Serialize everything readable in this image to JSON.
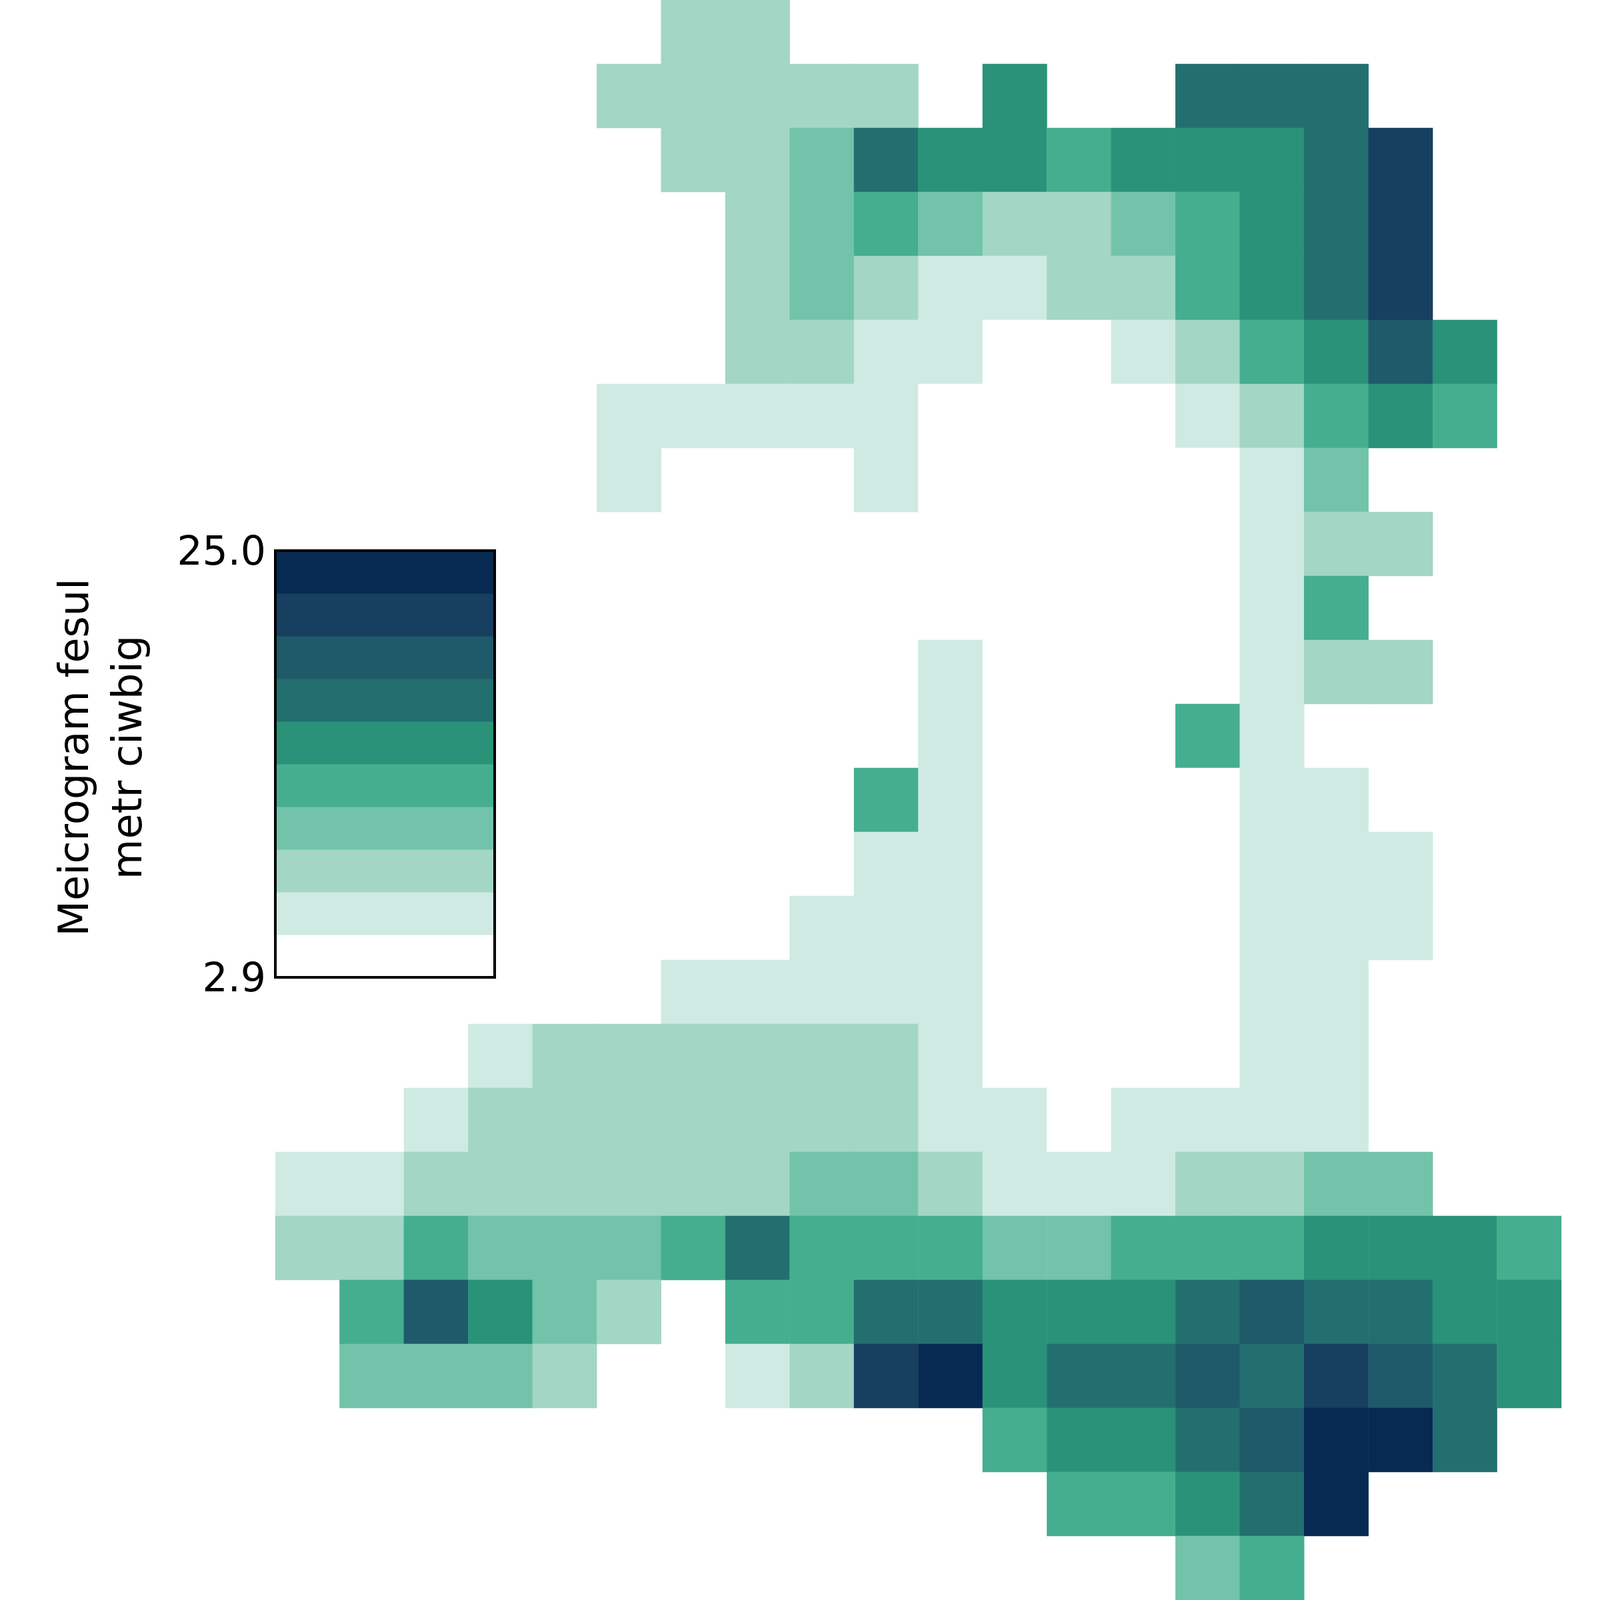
{
  "chart_data": {
    "type": "heatmap",
    "colorbar_label": "Meicrogram fesul\nmetr ciwbig",
    "colorbar_range": [
      2.9,
      25.0
    ],
    "colorbar_ticks": [
      2.9,
      {
        "value": 25.0,
        "label": "25.0"
      }
    ],
    "colors": [
      "#ffffff",
      "#cfeae2",
      "#a3d6c5",
      "#72c3aa",
      "#45ae8f",
      "#2a9278",
      "#236f6f",
      "#1f5a6a",
      "#173f60",
      "#062a52"
    ],
    "tick_labels": false,
    "cells": [
      [
        null,
        null,
        null,
        null,
        null,
        null,
        8.4,
        8.4,
        null,
        null,
        null,
        null,
        null,
        null,
        null,
        null,
        null,
        null,
        null,
        null
      ],
      [
        null,
        null,
        null,
        null,
        null,
        9,
        8.5,
        8.5,
        8.5,
        9,
        null,
        16,
        null,
        null,
        17,
        17,
        18,
        null,
        null,
        null
      ],
      [
        null,
        null,
        null,
        null,
        null,
        null,
        8.4,
        8.4,
        11,
        18,
        14,
        15,
        13,
        14,
        15,
        16,
        17,
        22,
        null,
        null
      ],
      [
        null,
        null,
        null,
        null,
        null,
        null,
        null,
        8,
        11,
        12,
        10,
        9,
        9,
        10,
        13,
        15,
        18,
        22,
        null,
        null
      ],
      [
        null,
        null,
        null,
        null,
        null,
        null,
        null,
        9,
        10,
        8,
        7,
        7,
        8,
        9,
        12,
        14,
        17,
        21,
        null,
        null
      ],
      [
        null,
        null,
        null,
        null,
        null,
        null,
        null,
        8,
        8,
        6,
        6,
        5,
        5,
        7,
        9,
        12,
        16,
        20,
        14,
        null
      ],
      [
        null,
        null,
        null,
        null,
        null,
        6,
        6,
        7,
        6,
        7,
        4,
        4,
        4,
        5,
        6,
        9,
        12,
        16,
        13,
        null
      ],
      [
        null,
        null,
        null,
        null,
        null,
        6,
        null,
        null,
        null,
        6,
        4,
        4,
        4,
        4,
        5,
        6,
        10,
        null,
        null,
        null
      ],
      [
        null,
        null,
        null,
        null,
        null,
        null,
        null,
        null,
        null,
        null,
        4,
        4,
        4,
        4,
        5,
        6,
        9,
        8,
        null,
        null
      ],
      [
        null,
        null,
        null,
        null,
        null,
        null,
        null,
        null,
        null,
        5,
        4,
        4,
        4,
        4,
        5,
        7,
        12,
        null,
        null,
        null
      ],
      [
        null,
        null,
        null,
        null,
        null,
        null,
        null,
        null,
        null,
        5,
        6,
        4,
        4,
        4,
        5,
        7,
        9,
        9,
        null,
        null
      ],
      [
        null,
        null,
        null,
        null,
        null,
        null,
        null,
        null,
        null,
        null,
        6,
        5,
        4,
        5,
        13,
        6,
        null,
        null,
        null,
        null
      ],
      [
        null,
        null,
        null,
        null,
        null,
        null,
        null,
        null,
        null,
        12,
        6,
        5,
        5,
        4,
        5,
        6,
        6,
        null,
        null,
        null
      ],
      [
        null,
        null,
        null,
        null,
        null,
        null,
        null,
        null,
        null,
        7,
        6,
        5,
        4,
        4,
        5,
        6,
        6,
        6,
        null,
        null
      ],
      [
        null,
        null,
        null,
        null,
        null,
        null,
        null,
        null,
        6,
        6,
        6,
        5,
        4,
        4,
        5,
        6,
        6,
        6,
        null,
        null
      ],
      [
        null,
        null,
        null,
        null,
        null,
        null,
        7,
        7,
        7,
        7,
        7,
        5,
        4,
        4,
        5,
        6,
        6,
        null,
        null,
        null
      ],
      [
        null,
        null,
        null,
        7,
        8,
        8,
        8,
        9,
        8,
        9,
        7,
        4,
        4,
        4,
        5,
        6,
        7,
        null,
        null,
        null
      ],
      [
        null,
        null,
        7,
        8,
        8,
        8,
        8,
        9,
        9,
        8,
        7,
        6,
        5,
        6,
        7,
        7,
        7,
        null,
        null,
        null
      ],
      [
        7,
        7,
        8,
        8,
        9,
        9,
        9,
        9,
        10,
        10,
        9,
        7,
        6,
        7,
        9,
        9,
        10,
        11,
        null,
        null
      ],
      [
        8,
        9,
        12,
        10,
        10,
        11,
        12,
        17,
        12,
        13,
        12,
        10,
        10,
        12,
        13,
        13,
        14,
        14,
        14,
        12
      ],
      [
        null,
        12,
        20,
        15,
        10,
        9,
        null,
        12,
        13,
        17,
        18,
        16,
        14,
        15,
        18,
        19,
        17,
        18,
        15,
        14
      ],
      [
        null,
        11,
        11,
        10,
        9,
        null,
        null,
        7,
        9,
        22,
        23,
        14,
        18,
        17,
        20,
        18,
        22,
        20,
        18,
        16
      ],
      [
        null,
        null,
        null,
        null,
        null,
        null,
        null,
        null,
        null,
        null,
        null,
        12,
        14,
        16,
        17,
        20,
        23,
        23,
        18,
        null
      ],
      [
        null,
        null,
        null,
        null,
        null,
        null,
        null,
        null,
        null,
        null,
        null,
        null,
        12,
        13,
        14,
        18,
        24,
        null,
        null,
        null
      ],
      [
        null,
        null,
        null,
        null,
        null,
        null,
        null,
        null,
        null,
        null,
        null,
        null,
        null,
        null,
        11,
        13,
        null,
        null,
        null,
        null
      ]
    ]
  }
}
